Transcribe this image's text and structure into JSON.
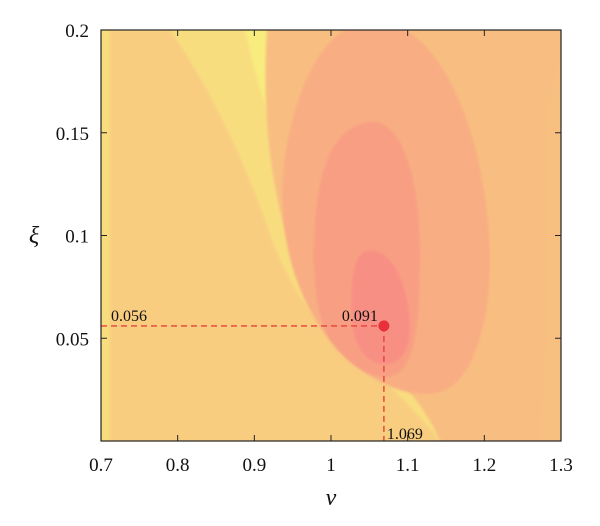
{
  "chart_data": {
    "type": "heatmap",
    "title": "",
    "xlabel": "ν",
    "ylabel": "ξ",
    "xlim": [
      0.7,
      1.3
    ],
    "ylim": [
      0.0,
      0.2
    ],
    "x_ticks": [
      0.7,
      0.8,
      0.9,
      1.0,
      1.1,
      1.2,
      1.3
    ],
    "x_tick_labels": [
      "0.7",
      "0.8",
      "0.9",
      "1",
      "1.1",
      "1.2",
      "1.3"
    ],
    "y_ticks": [
      0.05,
      0.1,
      0.15,
      0.2
    ],
    "y_tick_labels": [
      "0.05",
      "0.1",
      "0.15",
      "0.2"
    ],
    "grid": false,
    "colormap": [
      "#f8ec7e",
      "#f8dd7f",
      "#f8cd80",
      "#f8be81",
      "#f8ae82",
      "#f89f83",
      "#f88f84"
    ],
    "optimum": {
      "x": 1.069,
      "y": 0.056,
      "value_label": "0.091",
      "x_label": "1.069",
      "y_label": "0.056",
      "marker_color": "#e8303a",
      "guide_color": "#e8403a"
    }
  }
}
